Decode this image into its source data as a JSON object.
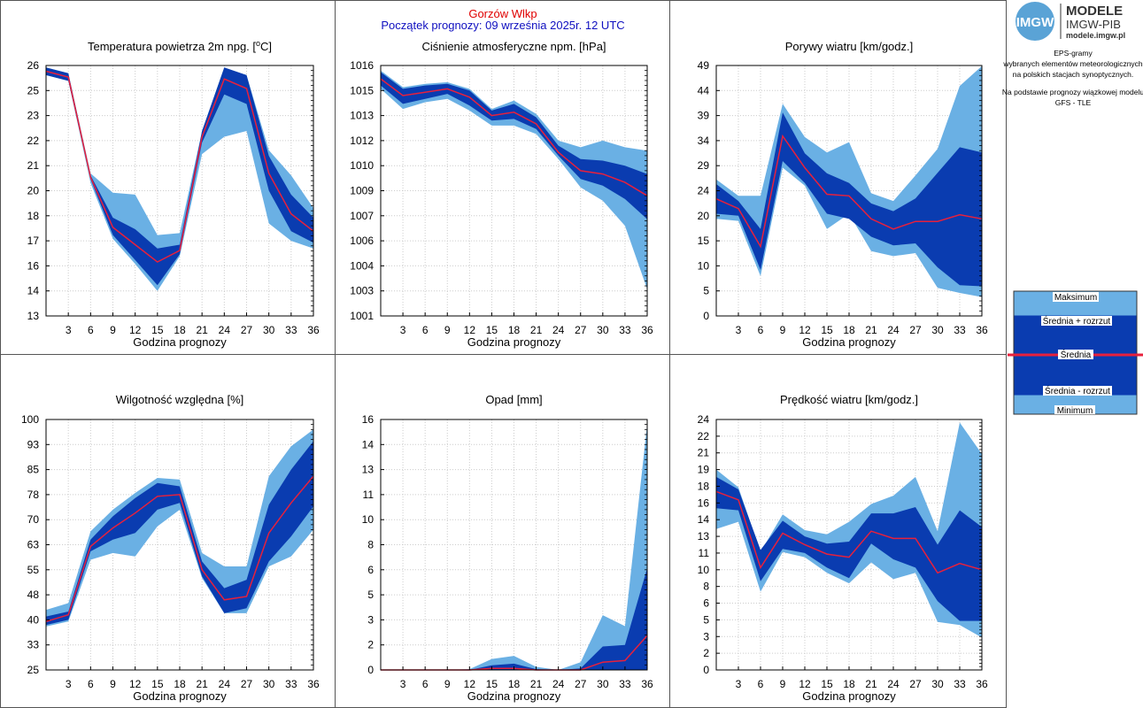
{
  "header": {
    "station": "Gorzów Wlkp",
    "forecast_start": "Początek prognozy: 09 września 2025r. 12 UTC"
  },
  "side": {
    "logo_letters": "IMGW",
    "logo_title_1": "MODELE",
    "logo_title_2": "IMGW-PIB",
    "logo_url": "modele.imgw.pl",
    "desc_lines": [
      "EPS-gramy",
      "wybranych elementów meteorologicznych",
      "na polskich stacjach  synoptycznych."
    ],
    "basis_lines": [
      "Na podstawie prognozy wiązkowej modelu",
      "GFS - TLE"
    ],
    "legend": {
      "max": "Maksimum",
      "plus": "Średnia + rozrzut",
      "mean": "Średnia",
      "minus": "Średnia - rozrzut",
      "min": "Minimum"
    }
  },
  "colors": {
    "minmax": "#6ab0e4",
    "spread": "#0a3cb0",
    "mean": "#e8203c",
    "header_station": "#e00000",
    "header_forecast": "#1010c0"
  },
  "chart_data": [
    {
      "type": "area",
      "title": "Temperatura powietrza 2m npg. [",
      "title_sup": "o",
      "title_end": "C]",
      "xlabel": "Godzina prognozy",
      "x": [
        0,
        3,
        6,
        9,
        12,
        15,
        18,
        21,
        24,
        27,
        30,
        33,
        36
      ],
      "ylim": [
        13,
        26
      ],
      "yticks": [
        "13",
        "14",
        "16",
        "17",
        "18",
        "20",
        "21",
        "22",
        "23",
        "25",
        "26"
      ],
      "mean": [
        25.7,
        25.4,
        20.2,
        17.6,
        16.7,
        15.8,
        16.4,
        22.3,
        25.3,
        24.8,
        20.4,
        18.3,
        17.4
      ],
      "spread_hi": [
        25.9,
        25.6,
        20.3,
        18.1,
        17.5,
        16.5,
        16.7,
        22.6,
        25.9,
        25.5,
        21.3,
        19.3,
        18.1
      ],
      "spread_lo": [
        25.5,
        25.2,
        20.1,
        17.2,
        15.9,
        14.6,
        16.2,
        22.0,
        24.5,
        24.0,
        19.5,
        17.4,
        16.8
      ],
      "max": [
        25.9,
        25.6,
        20.4,
        19.4,
        19.3,
        17.2,
        17.3,
        22.6,
        25.9,
        25.5,
        21.6,
        20.3,
        18.6
      ],
      "min": [
        25.5,
        25.2,
        19.9,
        17.0,
        15.7,
        14.3,
        16.1,
        21.4,
        22.3,
        22.6,
        17.8,
        16.9,
        16.5
      ]
    },
    {
      "type": "area",
      "title": "Ciśnienie atmosferyczne npm. [hPa]",
      "xlabel": "Godzina prognozy",
      "x": [
        0,
        3,
        6,
        9,
        12,
        15,
        18,
        21,
        24,
        27,
        30,
        33,
        36
      ],
      "ylim": [
        1001,
        1016
      ],
      "yticks": [
        "1001",
        "1003",
        "1004",
        "1006",
        "1007",
        "1009",
        "1010",
        "1012",
        "1013",
        "1015",
        "1016"
      ],
      "mean": [
        1015.2,
        1014.2,
        1014.4,
        1014.6,
        1014.1,
        1013.0,
        1013.2,
        1012.5,
        1010.8,
        1009.7,
        1009.5,
        1009.0,
        1008.2
      ],
      "spread_hi": [
        1015.6,
        1014.6,
        1014.8,
        1014.9,
        1014.5,
        1013.3,
        1013.7,
        1012.9,
        1011.2,
        1010.4,
        1010.3,
        1010.0,
        1009.5
      ],
      "spread_lo": [
        1014.8,
        1013.7,
        1014.0,
        1014.3,
        1013.6,
        1012.7,
        1012.8,
        1012.2,
        1010.6,
        1009.2,
        1008.8,
        1008.0,
        1006.8
      ],
      "max": [
        1015.7,
        1014.7,
        1014.9,
        1015.0,
        1014.6,
        1013.4,
        1013.9,
        1013.1,
        1011.5,
        1011.1,
        1011.5,
        1011.1,
        1010.9
      ],
      "min": [
        1014.6,
        1013.4,
        1013.8,
        1014.0,
        1013.3,
        1012.4,
        1012.4,
        1011.9,
        1010.4,
        1008.7,
        1007.9,
        1006.4,
        1002.6
      ]
    },
    {
      "type": "area",
      "title": "Porywy wiatru [km/godz.]",
      "xlabel": "Godzina prognozy",
      "x": [
        0,
        3,
        6,
        9,
        12,
        15,
        18,
        21,
        24,
        27,
        30,
        33,
        36
      ],
      "ylim": [
        0,
        49
      ],
      "yticks": [
        "0",
        "5",
        "10",
        "15",
        "20",
        "24",
        "29",
        "34",
        "39",
        "44",
        "49"
      ],
      "mean": [
        22.9,
        21.0,
        13.6,
        35.2,
        29.0,
        23.8,
        23.5,
        19.0,
        17.0,
        18.5,
        18.5,
        19.8,
        19.0
      ],
      "spread_hi": [
        25.8,
        22.5,
        17.0,
        39.8,
        31.8,
        27.9,
        26.0,
        22.0,
        20.5,
        23.0,
        28.0,
        33.0,
        32.0
      ],
      "spread_lo": [
        20.0,
        19.6,
        9.0,
        30.3,
        26.0,
        20.0,
        19.0,
        15.5,
        13.8,
        14.2,
        9.5,
        6.0,
        5.8
      ],
      "max": [
        26.7,
        23.5,
        23.5,
        41.5,
        35.0,
        32.0,
        34.0,
        24.0,
        22.5,
        27.5,
        32.7,
        45.0,
        48.9
      ],
      "min": [
        19.0,
        18.6,
        7.8,
        29.0,
        25.5,
        17.0,
        20.0,
        12.7,
        11.7,
        12.3,
        5.5,
        4.5,
        3.7
      ]
    },
    {
      "type": "area",
      "title": "Wilgotność względna [%]",
      "xlabel": "Godzina prognozy",
      "x": [
        0,
        3,
        6,
        9,
        12,
        15,
        18,
        21,
        24,
        27,
        30,
        33,
        36
      ],
      "ylim": [
        25,
        100
      ],
      "yticks": [
        "25",
        "33",
        "40",
        "48",
        "55",
        "63",
        "70",
        "78",
        "85",
        "93",
        "100"
      ],
      "mean": [
        39.5,
        41.5,
        62.0,
        67.5,
        72.0,
        77.0,
        77.5,
        55.0,
        46.0,
        47.0,
        66.0,
        75.0,
        83.0
      ],
      "spread_hi": [
        41.0,
        42.5,
        64.0,
        71.0,
        76.5,
        81.0,
        80.0,
        57.5,
        49.5,
        52.0,
        74.5,
        85.0,
        93.5
      ],
      "spread_lo": [
        38.5,
        40.0,
        60.5,
        64.0,
        66.0,
        73.0,
        75.0,
        53.0,
        42.0,
        43.5,
        57.5,
        65.0,
        74.0
      ],
      "max": [
        43.0,
        45.0,
        66.5,
        73.0,
        78.0,
        82.5,
        82.0,
        60.0,
        56.0,
        56.0,
        83.0,
        92.0,
        97.0
      ],
      "min": [
        38.0,
        39.5,
        58.0,
        60.0,
        59.0,
        68.0,
        73.0,
        52.5,
        42.0,
        42.0,
        56.0,
        59.0,
        67.0
      ]
    },
    {
      "type": "area",
      "title": "Opad [mm]",
      "xlabel": "Godzina prognozy",
      "x": [
        0,
        3,
        6,
        9,
        12,
        15,
        18,
        21,
        24,
        27,
        30,
        33,
        36
      ],
      "ylim": [
        0,
        16
      ],
      "yticks": [
        "0",
        "2",
        "3",
        "5",
        "6",
        "8",
        "10",
        "11",
        "13",
        "14",
        "16"
      ],
      "mean": [
        0,
        0,
        0,
        0,
        0,
        0.1,
        0.1,
        0,
        0,
        0,
        0.5,
        0.6,
        2.2
      ],
      "spread_hi": [
        0,
        0,
        0,
        0,
        0,
        0.3,
        0.4,
        0.05,
        0,
        0.1,
        1.5,
        1.6,
        6.5
      ],
      "spread_lo": [
        0,
        0,
        0,
        0,
        0,
        0,
        0,
        0,
        0,
        0,
        0,
        0,
        0
      ],
      "max": [
        0,
        0,
        0,
        0,
        0.05,
        0.7,
        0.9,
        0.2,
        0,
        0.5,
        3.5,
        2.8,
        15.7
      ],
      "min": [
        0,
        0,
        0,
        0,
        0,
        0,
        0,
        0,
        0,
        0,
        0,
        0,
        0
      ]
    },
    {
      "type": "area",
      "title": "Prędkość wiatru [km/godz.]",
      "xlabel": "Godzina prognozy",
      "x": [
        0,
        3,
        6,
        9,
        12,
        15,
        18,
        21,
        24,
        27,
        30,
        33,
        36
      ],
      "ylim": [
        0,
        24
      ],
      "yticks": [
        "0",
        "2",
        "3",
        "5",
        "6",
        "8",
        "10",
        "11",
        "13",
        "14",
        "16",
        "18",
        "19",
        "21",
        "22",
        "24"
      ],
      "mean": [
        17.1,
        16.3,
        9.8,
        13.1,
        12.0,
        11.1,
        10.8,
        13.3,
        12.6,
        12.6,
        9.3,
        10.2,
        9.6
      ],
      "spread_hi": [
        18.5,
        17.3,
        11.5,
        14.3,
        12.8,
        12.1,
        12.3,
        15.0,
        15.0,
        15.6,
        12.0,
        15.3,
        13.7
      ],
      "spread_lo": [
        15.5,
        15.3,
        8.5,
        11.6,
        11.2,
        9.8,
        8.8,
        12.1,
        10.6,
        9.8,
        6.6,
        4.7,
        4.7
      ],
      "max": [
        19.2,
        17.5,
        11.3,
        14.9,
        13.4,
        13.0,
        14.2,
        15.9,
        16.7,
        18.5,
        13.3,
        23.7,
        20.7
      ],
      "min": [
        13.5,
        14.2,
        7.5,
        11.3,
        10.8,
        9.3,
        8.3,
        10.3,
        8.7,
        9.3,
        4.6,
        4.3,
        3.1
      ]
    }
  ]
}
